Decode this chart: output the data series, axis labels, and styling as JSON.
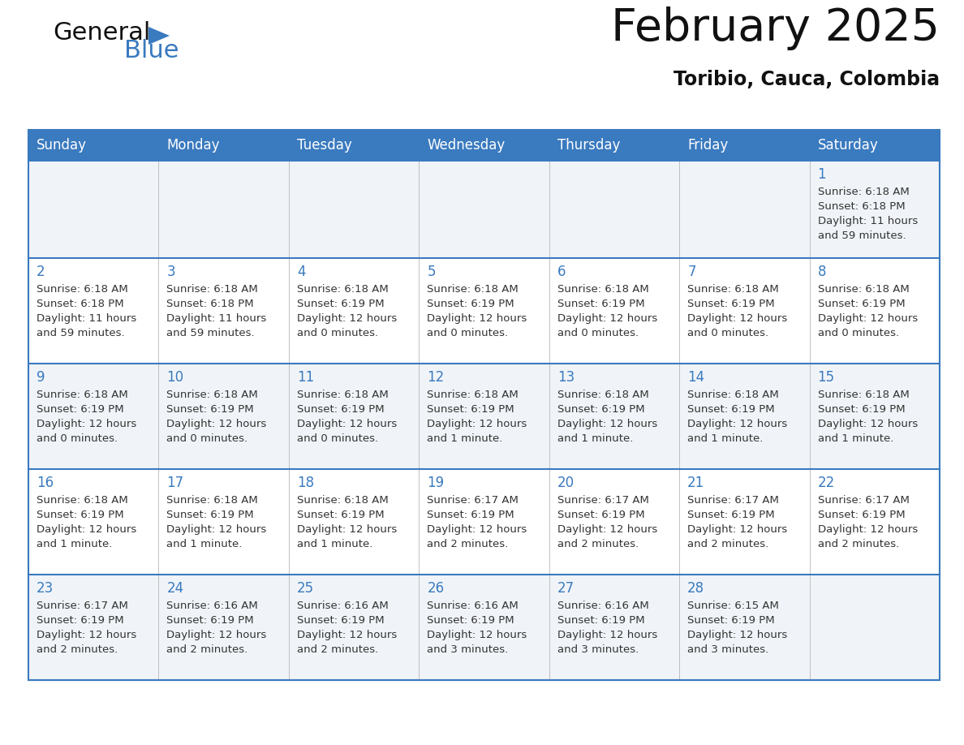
{
  "title": "February 2025",
  "subtitle": "Toribio, Cauca, Colombia",
  "header_color": "#3a7abf",
  "header_text_color": "#ffffff",
  "border_color": "#3a7abf",
  "divider_color": "#3a7abf",
  "text_color": "#333333",
  "day_number_color": "#3a7abf",
  "cell_bg_even": "#f0f4f8",
  "cell_bg_odd": "#ffffff",
  "logo_general_color": "#111111",
  "logo_blue_color": "#3a7abf",
  "logo_triangle_color": "#3a7abf",
  "days_of_week": [
    "Sunday",
    "Monday",
    "Tuesday",
    "Wednesday",
    "Thursday",
    "Friday",
    "Saturday"
  ],
  "calendar_data": [
    [
      null,
      null,
      null,
      null,
      null,
      null,
      {
        "day": 1,
        "sunrise": "6:18 AM",
        "sunset": "6:18 PM",
        "daylight_hours": 11,
        "daylight_mins": 59,
        "daylight_str": "11 hours\nand 59 minutes."
      }
    ],
    [
      {
        "day": 2,
        "sunrise": "6:18 AM",
        "sunset": "6:18 PM",
        "daylight_hours": 11,
        "daylight_mins": 59,
        "daylight_str": "11 hours\nand 59 minutes."
      },
      {
        "day": 3,
        "sunrise": "6:18 AM",
        "sunset": "6:18 PM",
        "daylight_hours": 11,
        "daylight_mins": 59,
        "daylight_str": "11 hours\nand 59 minutes."
      },
      {
        "day": 4,
        "sunrise": "6:18 AM",
        "sunset": "6:19 PM",
        "daylight_hours": 12,
        "daylight_mins": 0,
        "daylight_str": "12 hours\nand 0 minutes."
      },
      {
        "day": 5,
        "sunrise": "6:18 AM",
        "sunset": "6:19 PM",
        "daylight_hours": 12,
        "daylight_mins": 0,
        "daylight_str": "12 hours\nand 0 minutes."
      },
      {
        "day": 6,
        "sunrise": "6:18 AM",
        "sunset": "6:19 PM",
        "daylight_hours": 12,
        "daylight_mins": 0,
        "daylight_str": "12 hours\nand 0 minutes."
      },
      {
        "day": 7,
        "sunrise": "6:18 AM",
        "sunset": "6:19 PM",
        "daylight_hours": 12,
        "daylight_mins": 0,
        "daylight_str": "12 hours\nand 0 minutes."
      },
      {
        "day": 8,
        "sunrise": "6:18 AM",
        "sunset": "6:19 PM",
        "daylight_hours": 12,
        "daylight_mins": 0,
        "daylight_str": "12 hours\nand 0 minutes."
      }
    ],
    [
      {
        "day": 9,
        "sunrise": "6:18 AM",
        "sunset": "6:19 PM",
        "daylight_hours": 12,
        "daylight_mins": 0,
        "daylight_str": "12 hours\nand 0 minutes."
      },
      {
        "day": 10,
        "sunrise": "6:18 AM",
        "sunset": "6:19 PM",
        "daylight_hours": 12,
        "daylight_mins": 0,
        "daylight_str": "12 hours\nand 0 minutes."
      },
      {
        "day": 11,
        "sunrise": "6:18 AM",
        "sunset": "6:19 PM",
        "daylight_hours": 12,
        "daylight_mins": 0,
        "daylight_str": "12 hours\nand 0 minutes."
      },
      {
        "day": 12,
        "sunrise": "6:18 AM",
        "sunset": "6:19 PM",
        "daylight_hours": 12,
        "daylight_mins": 1,
        "daylight_str": "12 hours\nand 1 minute."
      },
      {
        "day": 13,
        "sunrise": "6:18 AM",
        "sunset": "6:19 PM",
        "daylight_hours": 12,
        "daylight_mins": 1,
        "daylight_str": "12 hours\nand 1 minute."
      },
      {
        "day": 14,
        "sunrise": "6:18 AM",
        "sunset": "6:19 PM",
        "daylight_hours": 12,
        "daylight_mins": 1,
        "daylight_str": "12 hours\nand 1 minute."
      },
      {
        "day": 15,
        "sunrise": "6:18 AM",
        "sunset": "6:19 PM",
        "daylight_hours": 12,
        "daylight_mins": 1,
        "daylight_str": "12 hours\nand 1 minute."
      }
    ],
    [
      {
        "day": 16,
        "sunrise": "6:18 AM",
        "sunset": "6:19 PM",
        "daylight_hours": 12,
        "daylight_mins": 1,
        "daylight_str": "12 hours\nand 1 minute."
      },
      {
        "day": 17,
        "sunrise": "6:18 AM",
        "sunset": "6:19 PM",
        "daylight_hours": 12,
        "daylight_mins": 1,
        "daylight_str": "12 hours\nand 1 minute."
      },
      {
        "day": 18,
        "sunrise": "6:18 AM",
        "sunset": "6:19 PM",
        "daylight_hours": 12,
        "daylight_mins": 1,
        "daylight_str": "12 hours\nand 1 minute."
      },
      {
        "day": 19,
        "sunrise": "6:17 AM",
        "sunset": "6:19 PM",
        "daylight_hours": 12,
        "daylight_mins": 2,
        "daylight_str": "12 hours\nand 2 minutes."
      },
      {
        "day": 20,
        "sunrise": "6:17 AM",
        "sunset": "6:19 PM",
        "daylight_hours": 12,
        "daylight_mins": 2,
        "daylight_str": "12 hours\nand 2 minutes."
      },
      {
        "day": 21,
        "sunrise": "6:17 AM",
        "sunset": "6:19 PM",
        "daylight_hours": 12,
        "daylight_mins": 2,
        "daylight_str": "12 hours\nand 2 minutes."
      },
      {
        "day": 22,
        "sunrise": "6:17 AM",
        "sunset": "6:19 PM",
        "daylight_hours": 12,
        "daylight_mins": 2,
        "daylight_str": "12 hours\nand 2 minutes."
      }
    ],
    [
      {
        "day": 23,
        "sunrise": "6:17 AM",
        "sunset": "6:19 PM",
        "daylight_hours": 12,
        "daylight_mins": 2,
        "daylight_str": "12 hours\nand 2 minutes."
      },
      {
        "day": 24,
        "sunrise": "6:16 AM",
        "sunset": "6:19 PM",
        "daylight_hours": 12,
        "daylight_mins": 2,
        "daylight_str": "12 hours\nand 2 minutes."
      },
      {
        "day": 25,
        "sunrise": "6:16 AM",
        "sunset": "6:19 PM",
        "daylight_hours": 12,
        "daylight_mins": 2,
        "daylight_str": "12 hours\nand 2 minutes."
      },
      {
        "day": 26,
        "sunrise": "6:16 AM",
        "sunset": "6:19 PM",
        "daylight_hours": 12,
        "daylight_mins": 3,
        "daylight_str": "12 hours\nand 3 minutes."
      },
      {
        "day": 27,
        "sunrise": "6:16 AM",
        "sunset": "6:19 PM",
        "daylight_hours": 12,
        "daylight_mins": 3,
        "daylight_str": "12 hours\nand 3 minutes."
      },
      {
        "day": 28,
        "sunrise": "6:15 AM",
        "sunset": "6:19 PM",
        "daylight_hours": 12,
        "daylight_mins": 3,
        "daylight_str": "12 hours\nand 3 minutes."
      },
      null
    ]
  ]
}
